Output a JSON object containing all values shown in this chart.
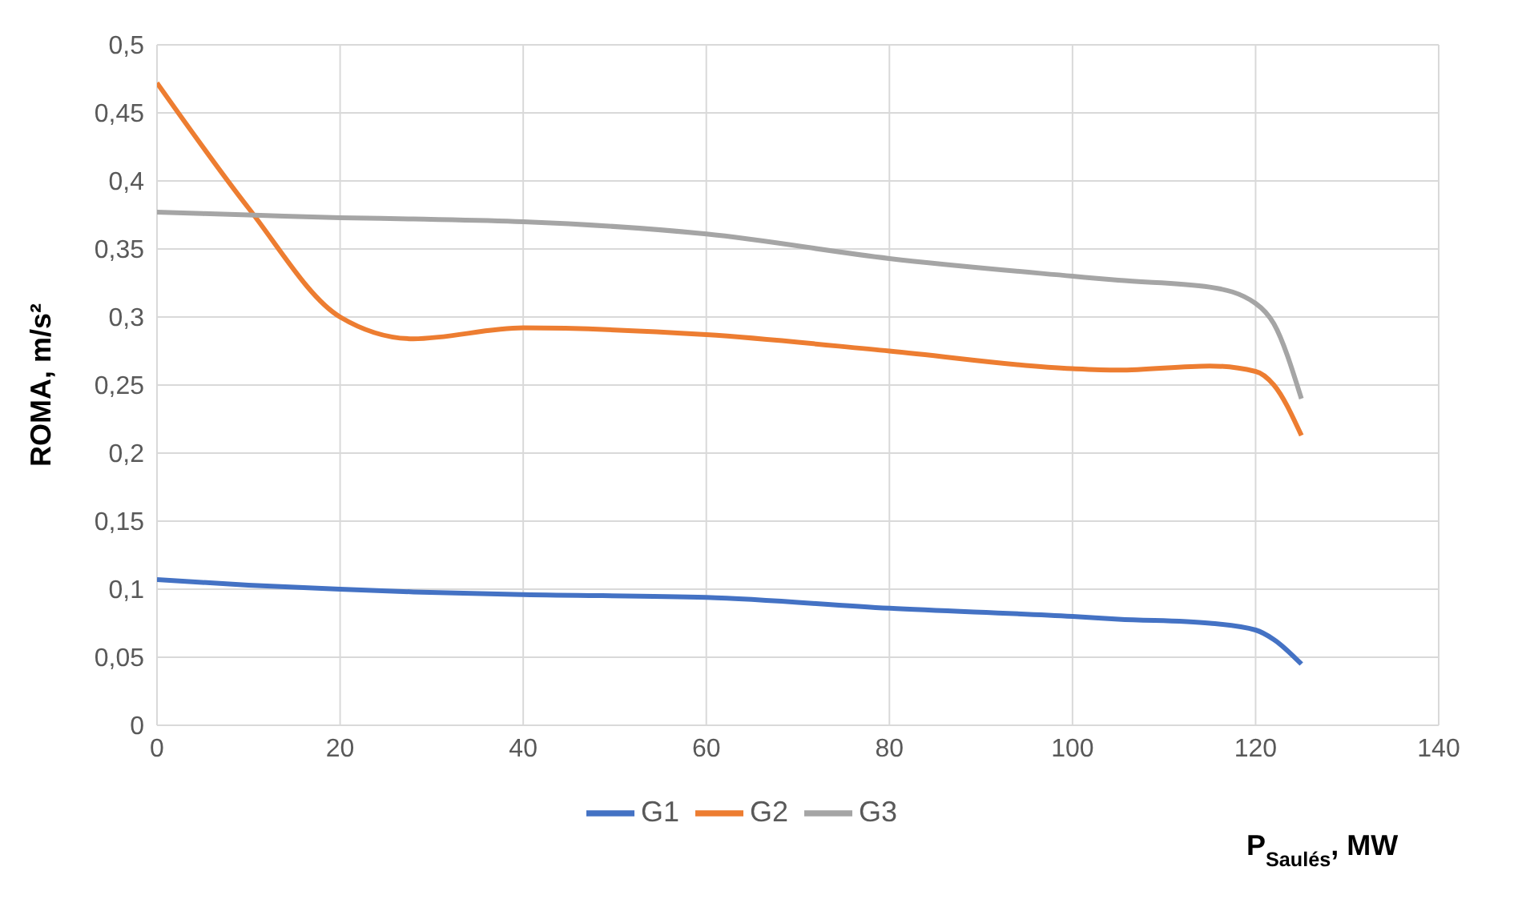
{
  "chart_data": {
    "type": "line",
    "xlabel": "P$_{Saulés}$, MW",
    "ylabel": "ROMA, m/s²",
    "x": [
      0,
      10,
      20,
      28,
      40,
      60,
      80,
      100,
      105,
      115,
      120,
      122,
      125
    ],
    "series": [
      {
        "name": "G1",
        "color": "#4472c4",
        "values": [
          0.107,
          0.103,
          0.1,
          0.098,
          0.096,
          0.094,
          0.086,
          0.08,
          0.078,
          0.075,
          0.07,
          0.063,
          0.045
        ]
      },
      {
        "name": "G2",
        "color": "#ed7d31",
        "values": [
          0.472,
          0.38,
          0.3,
          0.284,
          0.292,
          0.287,
          0.275,
          0.262,
          0.261,
          0.264,
          0.26,
          0.25,
          0.213
        ]
      },
      {
        "name": "G3",
        "color": "#a5a5a5",
        "values": [
          0.377,
          0.375,
          0.373,
          0.372,
          0.37,
          0.361,
          0.343,
          0.33,
          0.327,
          0.322,
          0.31,
          0.295,
          0.24
        ]
      }
    ],
    "xlim": [
      0,
      140
    ],
    "xticks": [
      0,
      20,
      40,
      60,
      80,
      100,
      120,
      140
    ],
    "ylim": [
      0,
      0.5
    ],
    "yticks": [
      0,
      {
        "value": 0.05,
        "label": "0,05"
      },
      {
        "value": 0.1,
        "label": "0,1"
      },
      {
        "value": 0.15,
        "label": "0,15"
      },
      {
        "value": 0.2,
        "label": "0,2"
      },
      {
        "value": 0.25,
        "label": "0,25"
      },
      {
        "value": 0.3,
        "label": "0,3"
      },
      {
        "value": 0.35,
        "label": "0,35"
      },
      {
        "value": 0.4,
        "label": "0,4"
      },
      {
        "value": 0.45,
        "label": "0,45"
      },
      {
        "value": 0.5,
        "label": "0,5"
      }
    ],
    "grid": true,
    "legend": "bottom",
    "marker": "none",
    "line_style": "solid"
  }
}
